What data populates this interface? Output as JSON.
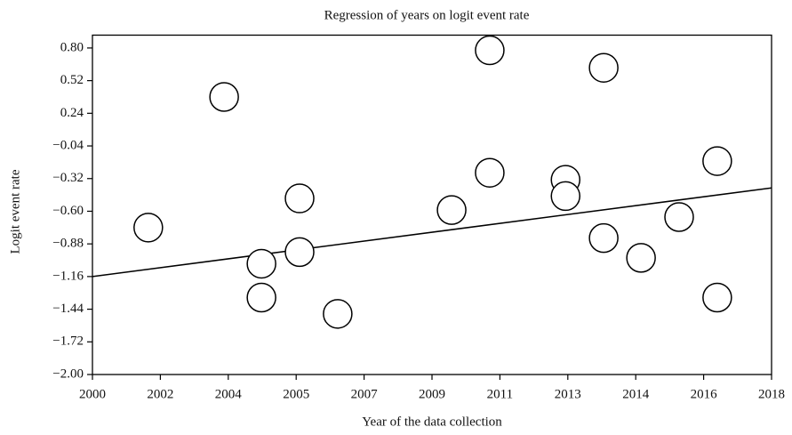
{
  "chart_data": {
    "type": "scatter",
    "title": "Regression of years on logit event rate",
    "x_label": "Year of the data collection",
    "y_label": "Logit event rate",
    "series": [
      {
        "color": "#000000",
        "x": [
          2001.48,
          2003.49,
          2004.48,
          2004.48,
          2005.49,
          2005.49,
          2006.5,
          2009.52,
          2010.53,
          2010.53,
          2012.54,
          2012.54,
          2013.55,
          2013.55,
          2014.54,
          2015.55,
          2016.56,
          2016.56
        ],
        "values": [
          -0.74,
          0.38,
          -1.05,
          -1.34,
          -0.49,
          -0.95,
          -1.48,
          -0.59,
          0.78,
          -0.27,
          -0.33,
          -0.47,
          0.63,
          -0.83,
          -1.0,
          -0.65,
          -0.17,
          -1.34
        ]
      }
    ],
    "regression_line": {
      "color": "#000000",
      "x": [
        2000,
        2018
      ],
      "values": [
        -1.16,
        -0.4
      ]
    },
    "xlim": [
      2000,
      2018
    ],
    "xticks": [
      2000,
      {
        "value": 2001.8,
        "label": "2002"
      },
      {
        "value": 2003.6,
        "label": "2004"
      },
      {
        "value": 2005.4,
        "label": "2005"
      },
      {
        "value": 2007.2,
        "label": "2007"
      },
      2009,
      {
        "value": 2010.8,
        "label": "2011"
      },
      {
        "value": 2012.6,
        "label": "2013"
      },
      {
        "value": 2014.4,
        "label": "2014"
      },
      {
        "value": 2016.2,
        "label": "2016"
      },
      2018
    ],
    "ylim": [
      -2.0,
      0.91
    ],
    "yticks": [
      {
        "value": 0.8,
        "label": "0.80"
      },
      {
        "value": 0.52,
        "label": "0.52"
      },
      {
        "value": 0.24,
        "label": "0.24"
      },
      {
        "value": -0.04,
        "label": "−0.04"
      },
      {
        "value": -0.32,
        "label": "−0.32"
      },
      {
        "value": -0.6,
        "label": "−0.60"
      },
      {
        "value": -0.88,
        "label": "−0.88"
      },
      {
        "value": -1.16,
        "label": "−1.16"
      },
      {
        "value": -1.44,
        "label": "−1.44"
      },
      {
        "value": -1.72,
        "label": "−1.72"
      },
      {
        "value": -2.0,
        "label": "−2.00"
      }
    ],
    "grid": false
  }
}
